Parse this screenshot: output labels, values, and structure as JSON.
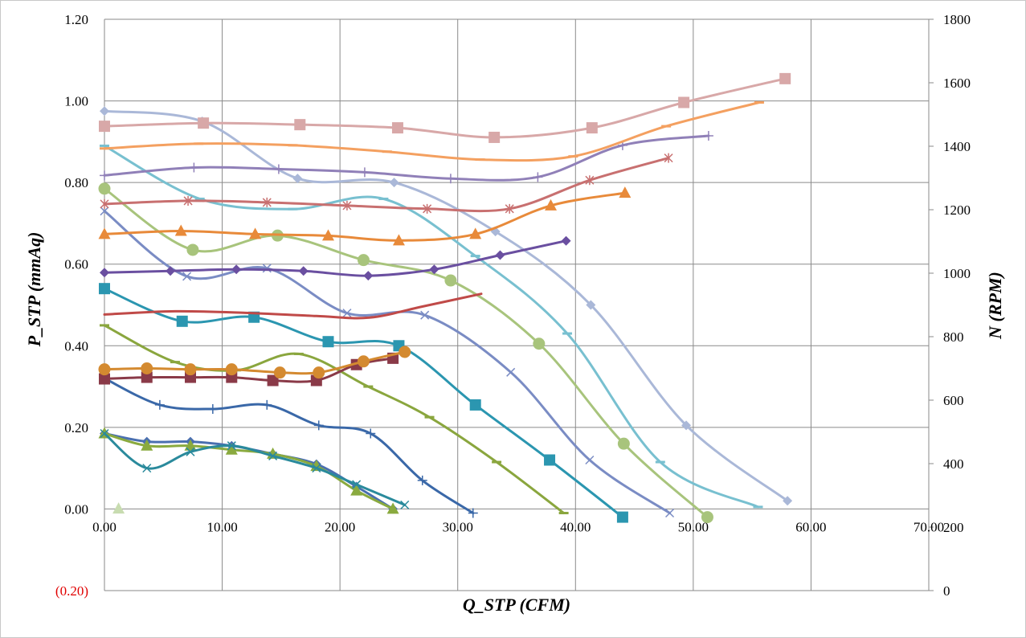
{
  "chart_data": {
    "type": "line",
    "title": "",
    "xlabel": "Q_STP (CFM)",
    "ylabel": "P_STP (mmAq)",
    "y2label": "N (RPM)",
    "xlim": [
      0,
      70
    ],
    "ylim": [
      -0.2,
      1.2
    ],
    "y2lim": [
      0,
      1800
    ],
    "grid": true,
    "legend": "none",
    "x_ticks": [
      "0.00",
      "10.00",
      "20.00",
      "30.00",
      "40.00",
      "50.00",
      "60.00",
      "70.00"
    ],
    "x_tick_values": [
      0,
      10,
      20,
      30,
      40,
      50,
      60,
      70
    ],
    "y_ticks": [
      "(0.20)",
      "0.00",
      "0.20",
      "0.40",
      "0.60",
      "0.80",
      "1.00",
      "1.20"
    ],
    "y_tick_values": [
      -0.2,
      0,
      0.2,
      0.4,
      0.6,
      0.8,
      1.0,
      1.2
    ],
    "y2_ticks": [
      "0",
      "200",
      "400",
      "600",
      "800",
      "1000",
      "1200",
      "1400",
      "1600",
      "1800"
    ],
    "y2_tick_values": [
      0,
      200,
      400,
      600,
      800,
      1000,
      1200,
      1400,
      1600,
      1800
    ],
    "series": [
      {
        "name": "P1",
        "axis": "left",
        "color": "#4a6fb0",
        "marker": "diamond",
        "x": [
          0,
          3.6,
          7.3,
          10.8,
          14.3,
          18,
          21.4,
          24.5
        ],
        "values": [
          0.185,
          0.165,
          0.165,
          0.155,
          0.135,
          0.11,
          0.055,
          0.0
        ]
      },
      {
        "name": "P2",
        "axis": "left",
        "color": "#8aaa3f",
        "marker": "triangle",
        "x": [
          0,
          3.6,
          7.3,
          10.8,
          14.3,
          18,
          21.4,
          24.5
        ],
        "values": [
          0.185,
          0.155,
          0.155,
          0.145,
          0.135,
          0.105,
          0.045,
          0.0
        ]
      },
      {
        "name": "P3",
        "axis": "left",
        "color": "#2a8a9c",
        "marker": "x",
        "x": [
          0,
          3.6,
          7.3,
          10.8,
          14.3,
          18,
          21.4,
          25.5
        ],
        "values": [
          0.185,
          0.1,
          0.14,
          0.155,
          0.13,
          0.1,
          0.06,
          0.01
        ]
      },
      {
        "name": "P4",
        "axis": "left",
        "color": "#3a68a8",
        "marker": "plus",
        "x": [
          0,
          4.7,
          9.2,
          13.8,
          18.2,
          22.6,
          27,
          31.3
        ],
        "values": [
          0.32,
          0.255,
          0.245,
          0.255,
          0.205,
          0.185,
          0.07,
          -0.01
        ]
      },
      {
        "name": "P5",
        "axis": "left",
        "color": "#8aa63e",
        "marker": "dash",
        "x": [
          0,
          6,
          11.2,
          16.5,
          22.4,
          27.6,
          33.3,
          39
        ],
        "values": [
          0.45,
          0.36,
          0.34,
          0.38,
          0.3,
          0.225,
          0.115,
          -0.01
        ]
      },
      {
        "name": "P6",
        "axis": "left",
        "color": "#2b96b0",
        "marker": "square",
        "x": [
          0,
          6.6,
          12.7,
          19,
          25,
          31.5,
          37.8,
          44
        ],
        "values": [
          0.54,
          0.46,
          0.47,
          0.41,
          0.4,
          0.255,
          0.12,
          -0.02
        ]
      },
      {
        "name": "P7",
        "axis": "left",
        "color": "#7a8cc4",
        "marker": "x",
        "x": [
          0,
          7,
          13.8,
          20.6,
          27.2,
          34.5,
          41.2,
          48
        ],
        "values": [
          0.73,
          0.57,
          0.59,
          0.48,
          0.475,
          0.335,
          0.12,
          -0.01
        ]
      },
      {
        "name": "P8",
        "axis": "left",
        "color": "#a8c47c",
        "marker": "circle",
        "x": [
          0,
          7.5,
          14.7,
          22,
          29.4,
          36.9,
          44.1,
          51.2
        ],
        "values": [
          0.785,
          0.635,
          0.67,
          0.61,
          0.56,
          0.405,
          0.16,
          -0.02
        ]
      },
      {
        "name": "P9",
        "axis": "left",
        "color": "#78c0d0",
        "marker": "dash",
        "x": [
          0,
          8.1,
          16,
          23.7,
          31.5,
          39.3,
          47.2,
          55.5
        ],
        "values": [
          0.89,
          0.76,
          0.735,
          0.76,
          0.62,
          0.43,
          0.115,
          0.005
        ]
      },
      {
        "name": "P10",
        "axis": "left",
        "color": "#aab8d8",
        "marker": "diamond",
        "x": [
          0,
          8.3,
          16.4,
          24.6,
          33.2,
          41.3,
          49.4,
          58
        ],
        "values": [
          0.975,
          0.95,
          0.81,
          0.8,
          0.68,
          0.5,
          0.205,
          0.02
        ]
      },
      {
        "name": "N1",
        "axis": "right",
        "color": "#8a3a48",
        "marker": "square",
        "x": [
          0,
          3.6,
          7.3,
          10.8,
          14.3,
          18,
          21.4,
          24.5
        ],
        "values": [
          667,
          672,
          672,
          672,
          662,
          662,
          712,
          732
        ]
      },
      {
        "name": "N2",
        "axis": "right",
        "color": "#d48a30",
        "marker": "circle",
        "x": [
          0,
          3.6,
          7.3,
          10.8,
          14.9,
          18.2,
          22,
          25.5
        ],
        "values": [
          697,
          700,
          697,
          697,
          687,
          687,
          722,
          752
        ]
      },
      {
        "name": "N3",
        "axis": "right",
        "color": "#c04a48",
        "marker": "none",
        "x": [
          0,
          6,
          12,
          18,
          22.5,
          27,
          32
        ],
        "values": [
          870,
          880,
          875,
          865,
          860,
          895,
          935
        ]
      },
      {
        "name": "N4",
        "axis": "right",
        "color": "#6a4fa0",
        "marker": "diamond",
        "x": [
          0,
          5.6,
          11.2,
          16.9,
          22.4,
          28,
          33.6,
          39.2
        ],
        "values": [
          1002,
          1007,
          1012,
          1007,
          992,
          1012,
          1057,
          1102
        ]
      },
      {
        "name": "N5",
        "axis": "right",
        "color": "#e88a3a",
        "marker": "triangle",
        "x": [
          0,
          6.5,
          12.8,
          19,
          25,
          31.5,
          37.9,
          44.2
        ],
        "values": [
          1123,
          1133,
          1123,
          1118,
          1103,
          1123,
          1213,
          1253
        ]
      },
      {
        "name": "N6",
        "axis": "right",
        "color": "#c87070",
        "marker": "asterisk",
        "x": [
          0,
          7.1,
          13.8,
          20.6,
          27.4,
          34.4,
          41.2,
          47.9
        ],
        "values": [
          1218,
          1228,
          1223,
          1213,
          1203,
          1203,
          1293,
          1363
        ]
      },
      {
        "name": "N7",
        "axis": "right",
        "color": "#9080b8",
        "marker": "plus",
        "x": [
          0,
          7.6,
          14.8,
          22.1,
          29.4,
          36.8,
          44,
          51.3
        ],
        "values": [
          1308,
          1333,
          1328,
          1318,
          1298,
          1303,
          1403,
          1433
        ]
      },
      {
        "name": "N8",
        "axis": "right",
        "color": "#f4a060",
        "marker": "dash",
        "x": [
          0,
          8,
          16,
          24,
          31.9,
          39.8,
          47.7,
          55.6
        ],
        "values": [
          1393,
          1408,
          1403,
          1383,
          1358,
          1368,
          1463,
          1538
        ]
      },
      {
        "name": "N9",
        "axis": "right",
        "color": "#d8a8a8",
        "marker": "square",
        "x": [
          0,
          8.4,
          16.6,
          24.9,
          33.1,
          41.4,
          49.2,
          57.8
        ],
        "values": [
          1463,
          1473,
          1468,
          1458,
          1428,
          1458,
          1538,
          1613
        ]
      },
      {
        "name": "N10",
        "axis": "right",
        "color": "#c8dcb0",
        "marker": "triangle",
        "x": [
          1.2
        ],
        "values": [
          258
        ]
      }
    ]
  }
}
